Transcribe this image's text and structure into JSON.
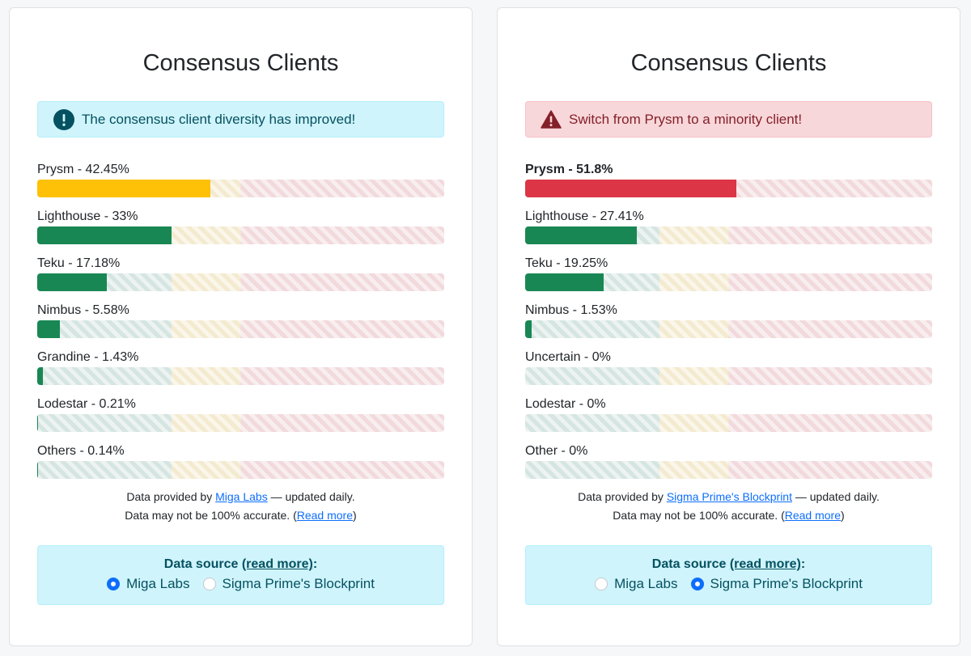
{
  "colors": {
    "success": "#198754",
    "warning": "#ffc107",
    "danger": "#dc3545"
  },
  "panels": [
    {
      "title": "Consensus Clients",
      "alert": {
        "type": "info",
        "icon": "exclamation-circle-icon",
        "text": "The consensus client diversity has improved!"
      },
      "clients": [
        {
          "label": "Prysm - 42.45%",
          "percent": 42.45,
          "color": "#ffc107",
          "bold": false
        },
        {
          "label": "Lighthouse - 33%",
          "percent": 33,
          "color": "#198754",
          "bold": false
        },
        {
          "label": "Teku - 17.18%",
          "percent": 17.18,
          "color": "#198754",
          "bold": false
        },
        {
          "label": "Nimbus - 5.58%",
          "percent": 5.58,
          "color": "#198754",
          "bold": false
        },
        {
          "label": "Grandine - 1.43%",
          "percent": 1.43,
          "color": "#198754",
          "bold": false
        },
        {
          "label": "Lodestar - 0.21%",
          "percent": 0.21,
          "color": "#198754",
          "bold": false
        },
        {
          "label": "Others - 0.14%",
          "percent": 0.14,
          "color": "#198754",
          "bold": false
        }
      ],
      "note": {
        "prefix": "Data provided by ",
        "link": "Miga Labs",
        "suffix": " — updated daily.",
        "line2_prefix": "Data may not be 100% accurate. (",
        "line2_link": "Read more",
        "line2_suffix": ")"
      },
      "source": {
        "heading_prefix": "Data source ",
        "heading_link": "(read more)",
        "heading_suffix": ":",
        "options": [
          {
            "label": "Miga Labs",
            "checked": true
          },
          {
            "label": "Sigma Prime's Blockprint",
            "checked": false
          }
        ]
      }
    },
    {
      "title": "Consensus Clients",
      "alert": {
        "type": "danger",
        "icon": "warning-triangle-icon",
        "text": "Switch from Prysm to a minority client!"
      },
      "clients": [
        {
          "label": "Prysm - 51.8%",
          "percent": 51.8,
          "color": "#dc3545",
          "bold": true
        },
        {
          "label": "Lighthouse - 27.41%",
          "percent": 27.41,
          "color": "#198754",
          "bold": false
        },
        {
          "label": "Teku - 19.25%",
          "percent": 19.25,
          "color": "#198754",
          "bold": false
        },
        {
          "label": "Nimbus - 1.53%",
          "percent": 1.53,
          "color": "#198754",
          "bold": false
        },
        {
          "label": "Uncertain - 0%",
          "percent": 0,
          "color": "#198754",
          "bold": false
        },
        {
          "label": "Lodestar - 0%",
          "percent": 0,
          "color": "#198754",
          "bold": false
        },
        {
          "label": "Other - 0%",
          "percent": 0,
          "color": "#198754",
          "bold": false
        }
      ],
      "note": {
        "prefix": "Data provided by ",
        "link": "Sigma Prime's Blockprint",
        "suffix": " — updated daily.",
        "line2_prefix": "Data may not be 100% accurate. (",
        "line2_link": "Read more",
        "line2_suffix": ")"
      },
      "source": {
        "heading_prefix": "Data source ",
        "heading_link": "(read more)",
        "heading_suffix": ":",
        "options": [
          {
            "label": "Miga Labs",
            "checked": false
          },
          {
            "label": "Sigma Prime's Blockprint",
            "checked": true
          }
        ]
      }
    }
  ]
}
